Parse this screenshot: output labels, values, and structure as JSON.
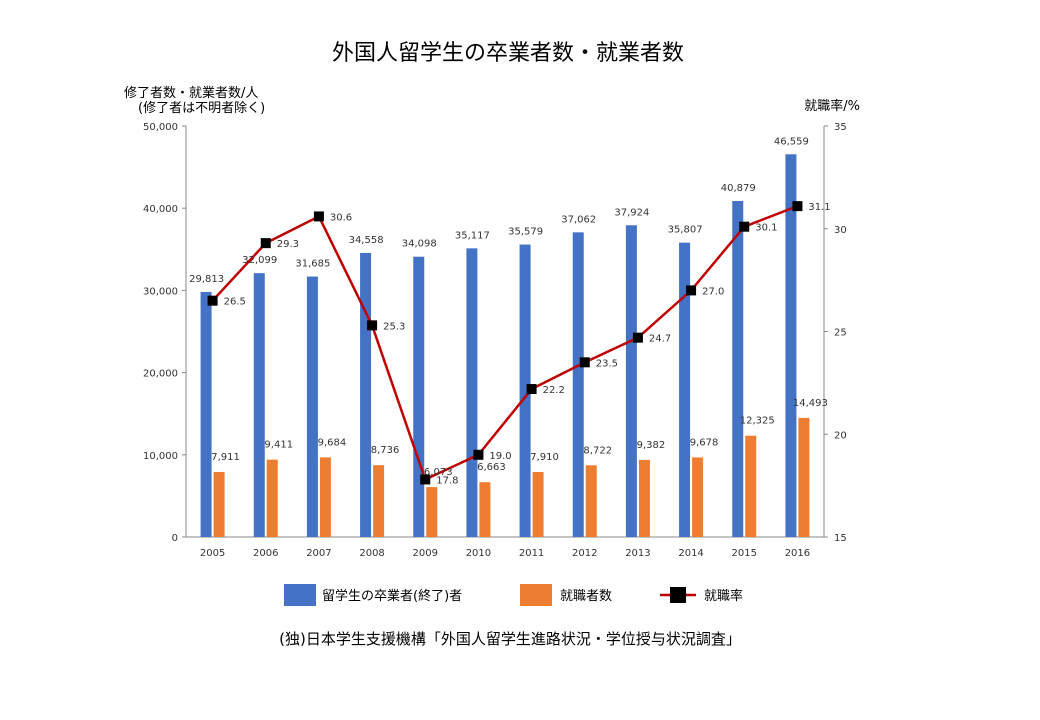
{
  "chart_data": {
    "type": "bar",
    "title": "外国人留学生の卒業者数・就業者数",
    "ylabel_left": "修了者数・就業者数/人",
    "ylabel_left_note": "(修了者は不明者除く)",
    "ylabel_right": "就職率/%",
    "categories": [
      "2005",
      "2006",
      "2007",
      "2008",
      "2009",
      "2010",
      "2011",
      "2012",
      "2013",
      "2014",
      "2015",
      "2016"
    ],
    "ylim_left": [
      0,
      50000
    ],
    "yticks_left": [
      "0",
      "10,000",
      "20,000",
      "30,000",
      "40,000",
      "50,000"
    ],
    "ylim_right": [
      15,
      35
    ],
    "yticks_right": [
      "15",
      "20",
      "25",
      "30",
      "35"
    ],
    "series": [
      {
        "name": "留学生の卒業者(終了)者",
        "kind": "bar",
        "color": "#4472C4",
        "values": [
          29813,
          32099,
          31685,
          34558,
          34098,
          35117,
          35579,
          37062,
          37924,
          35807,
          40879,
          46559
        ],
        "labels": [
          "29,813",
          "32,099",
          "31,685",
          "34,558",
          "34,098",
          "35,117",
          "35,579",
          "37,062",
          "37,924",
          "35,807",
          "40,879",
          "46,559"
        ]
      },
      {
        "name": "就職者数",
        "kind": "bar",
        "color": "#ED7D31",
        "values": [
          7911,
          9411,
          9684,
          8736,
          6073,
          6663,
          7910,
          8722,
          9382,
          9678,
          12325,
          14493
        ],
        "labels": [
          "7,911",
          "9,411",
          "9,684",
          "8,736",
          "6,073",
          "6,663",
          "7,910",
          "8,722",
          "9,382",
          "9,678",
          "12,325",
          "14,493"
        ]
      },
      {
        "name": "就職率",
        "kind": "line",
        "axis": "right",
        "color": "#C00000",
        "marker_color": "#000000",
        "values": [
          26.5,
          29.3,
          30.6,
          25.3,
          17.8,
          19.0,
          22.2,
          23.5,
          24.7,
          27.0,
          30.1,
          31.1
        ],
        "labels": [
          "26.5",
          "29.3",
          "30.6",
          "25.3",
          "17.8",
          "19.0",
          "22.2",
          "23.5",
          "24.7",
          "27.0",
          "30.1",
          "31.1"
        ]
      }
    ],
    "legend_position": "bottom",
    "grid": false
  },
  "source": "(独)日本学生支援機構「外国人留学生進路状況・学位授与状況調査」"
}
